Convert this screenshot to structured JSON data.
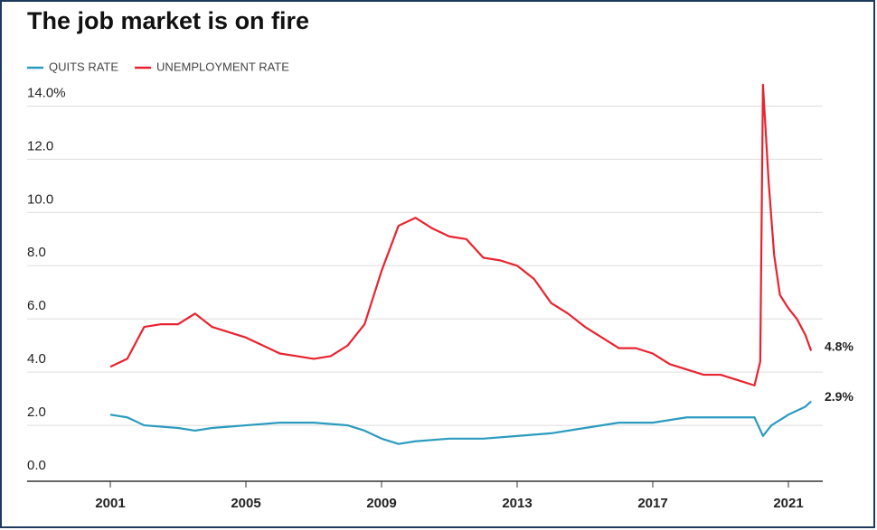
{
  "chart_data": {
    "type": "line",
    "title": "The job market is on fire",
    "xlim": [
      2000,
      2022
    ],
    "xticks": [
      2001,
      2005,
      2009,
      2013,
      2017,
      2021
    ],
    "ylim": [
      0,
      15
    ],
    "yticks": [
      {
        "value": 0,
        "label": "0.0"
      },
      {
        "value": 2,
        "label": "2.0"
      },
      {
        "value": 4,
        "label": "4.0"
      },
      {
        "value": 6,
        "label": "6.0"
      },
      {
        "value": 8,
        "label": "8.0"
      },
      {
        "value": 10,
        "label": "10.0"
      },
      {
        "value": 12,
        "label": "12.0"
      },
      {
        "value": 14,
        "label": "14.0%"
      }
    ],
    "grid": true,
    "legend": "top-left",
    "series": [
      {
        "name": "QUITS RATE",
        "color": "#2a9bbf",
        "x": [
          2001,
          2001.5,
          2002,
          2003,
          2003.5,
          2004,
          2005,
          2006,
          2007,
          2008,
          2008.5,
          2009,
          2009.5,
          2010,
          2011,
          2012,
          2013,
          2014,
          2015,
          2016,
          2017,
          2018,
          2019,
          2020,
          2020.25,
          2020.5,
          2021,
          2021.5,
          2021.67
        ],
        "values": [
          2.4,
          2.3,
          2.0,
          1.9,
          1.8,
          1.9,
          2.0,
          2.1,
          2.1,
          2.0,
          1.8,
          1.5,
          1.3,
          1.4,
          1.5,
          1.5,
          1.6,
          1.7,
          1.9,
          2.1,
          2.1,
          2.3,
          2.3,
          2.3,
          1.6,
          2.0,
          2.4,
          2.7,
          2.9
        ],
        "end_label": "2.9%"
      },
      {
        "name": "UNEMPLOYMENT RATE",
        "color": "#e8232f",
        "x": [
          2001,
          2001.5,
          2002,
          2002.5,
          2003,
          2003.5,
          2004,
          2004.5,
          2005,
          2005.5,
          2006,
          2006.5,
          2007,
          2007.5,
          2008,
          2008.5,
          2009,
          2009.5,
          2010,
          2010.5,
          2011,
          2011.5,
          2012,
          2012.5,
          2013,
          2013.5,
          2014,
          2014.5,
          2015,
          2015.5,
          2016,
          2016.5,
          2017,
          2017.5,
          2018,
          2018.5,
          2019,
          2019.5,
          2020,
          2020.17,
          2020.25,
          2020.42,
          2020.58,
          2020.75,
          2021,
          2021.25,
          2021.5,
          2021.67
        ],
        "values": [
          4.2,
          4.5,
          5.7,
          5.8,
          5.8,
          6.2,
          5.7,
          5.5,
          5.3,
          5.0,
          4.7,
          4.6,
          4.5,
          4.6,
          5.0,
          5.8,
          7.8,
          9.5,
          9.8,
          9.4,
          9.1,
          9.0,
          8.3,
          8.2,
          8.0,
          7.5,
          6.6,
          6.2,
          5.7,
          5.3,
          4.9,
          4.9,
          4.7,
          4.3,
          4.1,
          3.9,
          3.9,
          3.7,
          3.5,
          4.4,
          14.8,
          11.1,
          8.4,
          6.9,
          6.4,
          6.0,
          5.4,
          4.8
        ],
        "end_label": "4.8%"
      }
    ]
  }
}
